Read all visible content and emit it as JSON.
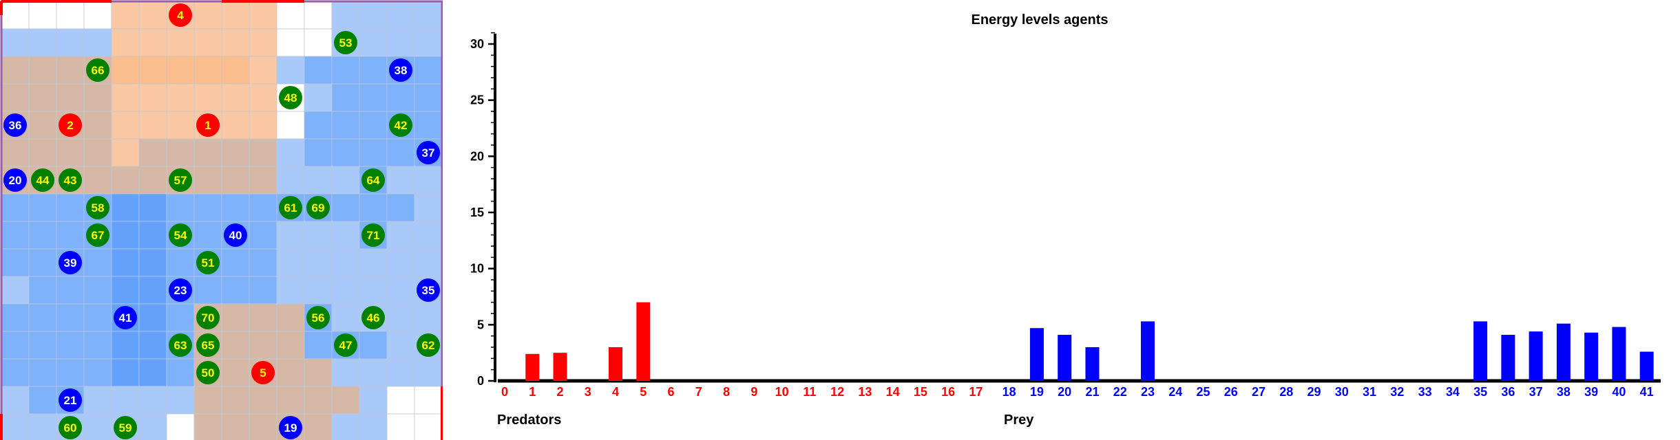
{
  "colors": {
    "predator": "#ff0000",
    "prey": "#0000ff",
    "plant": "#008000",
    "label_yellow": "#ffff00",
    "label_white": "#ffffff",
    "axis": "#000000"
  },
  "grid": {
    "rows": 16,
    "cols": 16,
    "cells": [
      "wwwwoooooowwbbbb",
      "bbbboooooowwbbbb",
      "ppppOOOOOobBBBBB",
      "ppppoooooowbBBBB",
      "ppppoooooowBBBBB",
      "ppppopppppbBBBBB",
      "ppppppppppbbbBbb",
      "BBBBCCBBBBBBBBBb",
      "BBBBCCBBBBbbbBbb",
      "BBBBCCBBBBbbbbbb",
      "bBBBCCBBBBbbbbbb",
      "BBBBCCBppppBbbbb",
      "BBBBCCBppppBBBbb",
      "BBBBCCBpppppbbbb",
      "bBBbbbbppppppbww",
      "bbbbbbwpppppbbww"
    ],
    "cell_colors": {
      "w": "#ffffff",
      "o": "#fcc8a3",
      "O": "#fbbf8f",
      "b": "#a9c9fb",
      "B": "#7eb1fb",
      "C": "#63a2fb",
      "p": "#d6b8a6"
    },
    "agents": [
      {
        "label": "4",
        "kind": "predator",
        "col": 6,
        "row": 0
      },
      {
        "label": "53",
        "kind": "plant",
        "col": 12,
        "row": 1
      },
      {
        "label": "66",
        "kind": "plant",
        "col": 3,
        "row": 2
      },
      {
        "label": "38",
        "kind": "prey",
        "col": 14,
        "row": 2
      },
      {
        "label": "48",
        "kind": "plant",
        "col": 10,
        "row": 3
      },
      {
        "label": "36",
        "kind": "prey",
        "col": 0,
        "row": 4
      },
      {
        "label": "2",
        "kind": "predator",
        "col": 2,
        "row": 4
      },
      {
        "label": "1",
        "kind": "predator",
        "col": 7,
        "row": 4
      },
      {
        "label": "42",
        "kind": "plant",
        "col": 14,
        "row": 4
      },
      {
        "label": "37",
        "kind": "prey",
        "col": 15,
        "row": 5
      },
      {
        "label": "20",
        "kind": "prey",
        "col": 0,
        "row": 6
      },
      {
        "label": "44",
        "kind": "plant",
        "col": 1,
        "row": 6
      },
      {
        "label": "43",
        "kind": "plant",
        "col": 2,
        "row": 6
      },
      {
        "label": "57",
        "kind": "plant",
        "col": 6,
        "row": 6
      },
      {
        "label": "64",
        "kind": "plant",
        "col": 13,
        "row": 6
      },
      {
        "label": "58",
        "kind": "plant",
        "col": 3,
        "row": 7
      },
      {
        "label": "61",
        "kind": "plant",
        "col": 10,
        "row": 7
      },
      {
        "label": "69",
        "kind": "plant",
        "col": 11,
        "row": 7
      },
      {
        "label": "67",
        "kind": "plant",
        "col": 3,
        "row": 8
      },
      {
        "label": "54",
        "kind": "plant",
        "col": 6,
        "row": 8
      },
      {
        "label": "40",
        "kind": "prey",
        "col": 8,
        "row": 8
      },
      {
        "label": "71",
        "kind": "plant",
        "col": 13,
        "row": 8
      },
      {
        "label": "39",
        "kind": "prey",
        "col": 2,
        "row": 9
      },
      {
        "label": "51",
        "kind": "plant",
        "col": 7,
        "row": 9
      },
      {
        "label": "23",
        "kind": "prey",
        "col": 6,
        "row": 10
      },
      {
        "label": "35",
        "kind": "prey",
        "col": 15,
        "row": 10
      },
      {
        "label": "41",
        "kind": "prey",
        "col": 4,
        "row": 11
      },
      {
        "label": "70",
        "kind": "plant",
        "col": 7,
        "row": 11
      },
      {
        "label": "56",
        "kind": "plant",
        "col": 11,
        "row": 11
      },
      {
        "label": "46",
        "kind": "plant",
        "col": 13,
        "row": 11
      },
      {
        "label": "63",
        "kind": "plant",
        "col": 6,
        "row": 12
      },
      {
        "label": "65",
        "kind": "plant",
        "col": 7,
        "row": 12
      },
      {
        "label": "47",
        "kind": "plant",
        "col": 12,
        "row": 12
      },
      {
        "label": "62",
        "kind": "plant",
        "col": 15,
        "row": 12
      },
      {
        "label": "50",
        "kind": "plant",
        "col": 7,
        "row": 13
      },
      {
        "label": "5",
        "kind": "predator",
        "col": 9,
        "row": 13
      },
      {
        "label": "21",
        "kind": "prey",
        "col": 2,
        "row": 14
      },
      {
        "label": "60",
        "kind": "plant",
        "col": 2,
        "row": 15
      },
      {
        "label": "59",
        "kind": "plant",
        "col": 4,
        "row": 15
      },
      {
        "label": "19",
        "kind": "prey",
        "col": 10,
        "row": 15
      }
    ]
  },
  "chart_data": {
    "type": "bar",
    "title": "Energy levels agents",
    "ylim": [
      0,
      31
    ],
    "yticks": [
      0,
      5,
      10,
      15,
      20,
      25,
      30
    ],
    "grid": false,
    "groups": [
      {
        "name": "Predators",
        "color": "#ff0000",
        "categories": [
          "0",
          "1",
          "2",
          "3",
          "4",
          "5",
          "6",
          "7",
          "8",
          "9",
          "10",
          "11",
          "12",
          "13",
          "14",
          "15",
          "16",
          "17"
        ],
        "values": [
          0,
          2.4,
          2.5,
          0,
          3.0,
          7.0,
          0,
          0,
          0,
          0,
          0,
          0,
          0,
          0,
          0,
          0,
          0,
          0
        ]
      },
      {
        "name": "Prey",
        "color": "#0000ff",
        "categories": [
          "18",
          "19",
          "20",
          "21",
          "22",
          "23",
          "24",
          "25",
          "26",
          "27",
          "28",
          "29",
          "30",
          "31",
          "32",
          "33",
          "34",
          "35",
          "36",
          "37",
          "38",
          "39",
          "40",
          "41"
        ],
        "values": [
          0,
          4.7,
          4.1,
          3.0,
          0,
          5.3,
          0,
          0,
          0,
          0,
          0,
          0,
          0,
          0,
          0,
          0,
          0,
          5.3,
          4.1,
          4.4,
          5.1,
          4.3,
          4.8,
          2.6
        ]
      }
    ]
  }
}
